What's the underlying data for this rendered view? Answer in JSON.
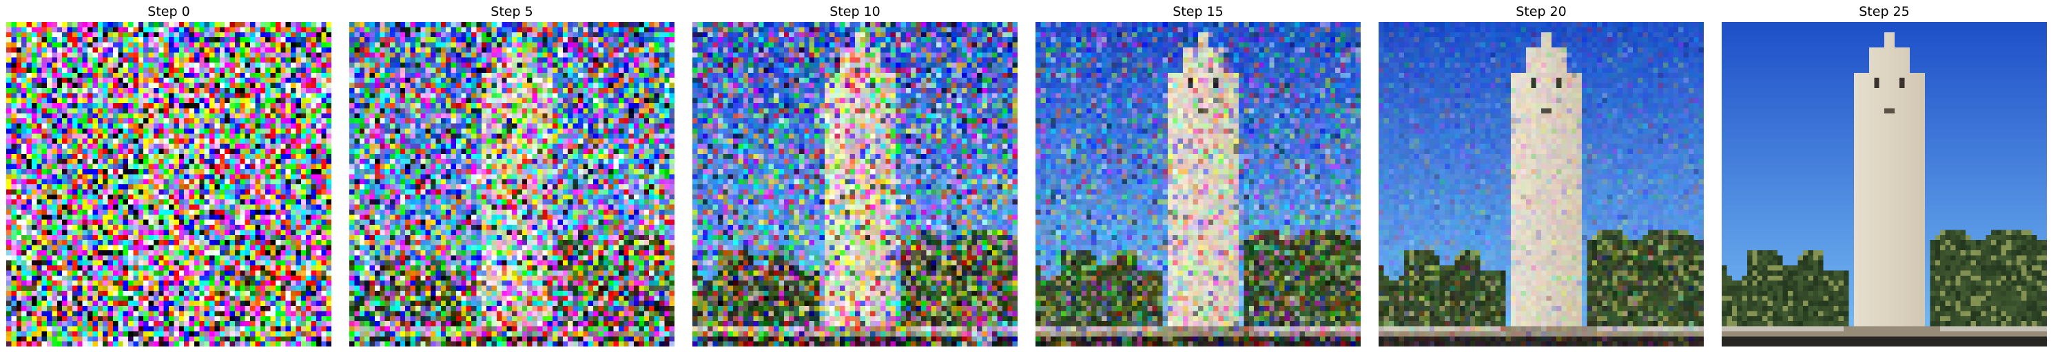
{
  "figure": {
    "panels": [
      {
        "title": "Step 0",
        "noise_level": 1.0
      },
      {
        "title": "Step 5",
        "noise_level": 0.8
      },
      {
        "title": "Step 10",
        "noise_level": 0.6
      },
      {
        "title": "Step 15",
        "noise_level": 0.4
      },
      {
        "title": "Step 20",
        "noise_level": 0.2
      },
      {
        "title": "Step 25",
        "noise_level": 0.0
      }
    ]
  }
}
